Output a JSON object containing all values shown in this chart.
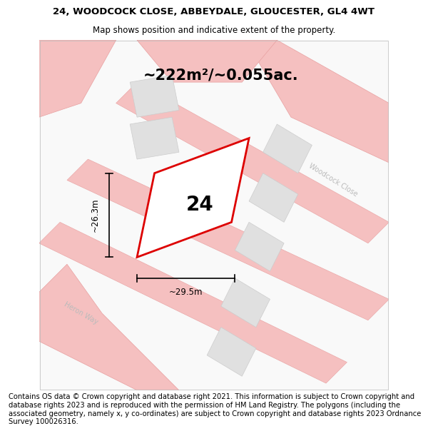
{
  "title_line1": "24, WOODCOCK CLOSE, ABBEYDALE, GLOUCESTER, GL4 4WT",
  "title_line2": "Map shows position and indicative extent of the property.",
  "footer_text": "Contains OS data © Crown copyright and database right 2021. This information is subject to Crown copyright and database rights 2023 and is reproduced with the permission of HM Land Registry. The polygons (including the associated geometry, namely x, y co-ordinates) are subject to Crown copyright and database rights 2023 Ordnance Survey 100026316.",
  "area_label": "~222m²/~0.055ac.",
  "width_label": "~29.5m",
  "height_label": "~26.3m",
  "plot_number": "24",
  "bg_color": "#ffffff",
  "road_color": "#f5c0c0",
  "road_edge": "#e8a0a0",
  "block_color": "#e0e0e0",
  "block_edge": "#cccccc",
  "plot_color": "#dd0000",
  "street_color": "#bbbbbb",
  "title_fontsize": 9.5,
  "subtitle_fontsize": 8.5,
  "footer_fontsize": 7.2,
  "area_fontsize": 15,
  "number_fontsize": 20,
  "dim_fontsize": 8.5
}
